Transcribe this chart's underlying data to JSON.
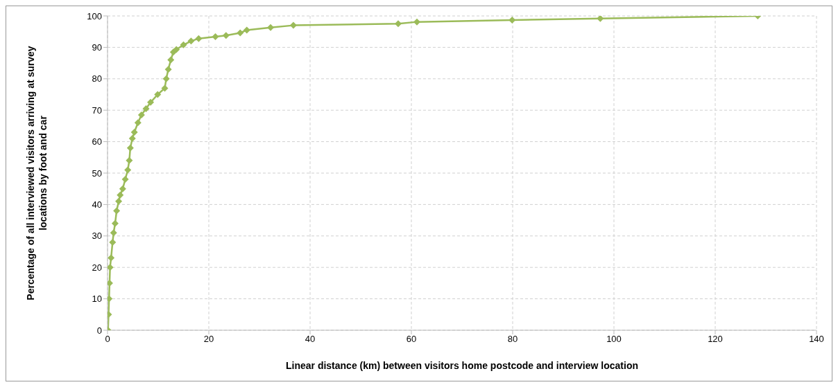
{
  "chart_data": {
    "type": "line",
    "xlabel": "Linear distance (km) between visitors home postcode and interview location",
    "ylabel": "Percentage of all interviewed visitors arriving at survey locations by foot and car",
    "xlim": [
      0,
      140
    ],
    "xticks": [
      0,
      20,
      40,
      60,
      80,
      100,
      120,
      140
    ],
    "ylim": [
      0,
      100
    ],
    "yticks": [
      0,
      10,
      20,
      30,
      40,
      50,
      60,
      70,
      80,
      90,
      100
    ],
    "grid": true,
    "marker": "diamond",
    "line_style": "solid",
    "series": [
      {
        "color": "#9bbb59",
        "x": [
          0.1,
          0.2,
          0.3,
          0.4,
          0.5,
          0.7,
          1.0,
          1.2,
          1.5,
          1.8,
          2.2,
          2.5,
          3.0,
          3.5,
          4.0,
          4.3,
          4.5,
          4.9,
          5.3,
          6.0,
          6.7,
          7.6,
          8.5,
          9.9,
          11.3,
          11.6,
          12.0,
          12.5,
          13.0,
          13.6,
          15.0,
          16.5,
          18.0,
          21.3,
          23.4,
          26.2,
          27.5,
          32.2,
          36.7,
          57.4,
          61.1,
          79.9,
          97.3,
          128.4
        ],
        "values": [
          0,
          5,
          10,
          15,
          20,
          23,
          28,
          31,
          34,
          38,
          41,
          43,
          45,
          48,
          51,
          54,
          58,
          61,
          63,
          66,
          68.5,
          70.5,
          72.5,
          75,
          77,
          80,
          83,
          86,
          88.5,
          89.3,
          90.8,
          92,
          92.8,
          93.4,
          93.8,
          94.6,
          95.5,
          96.3,
          97,
          97.5,
          98.1,
          98.7,
          99.2,
          100
        ]
      }
    ]
  }
}
